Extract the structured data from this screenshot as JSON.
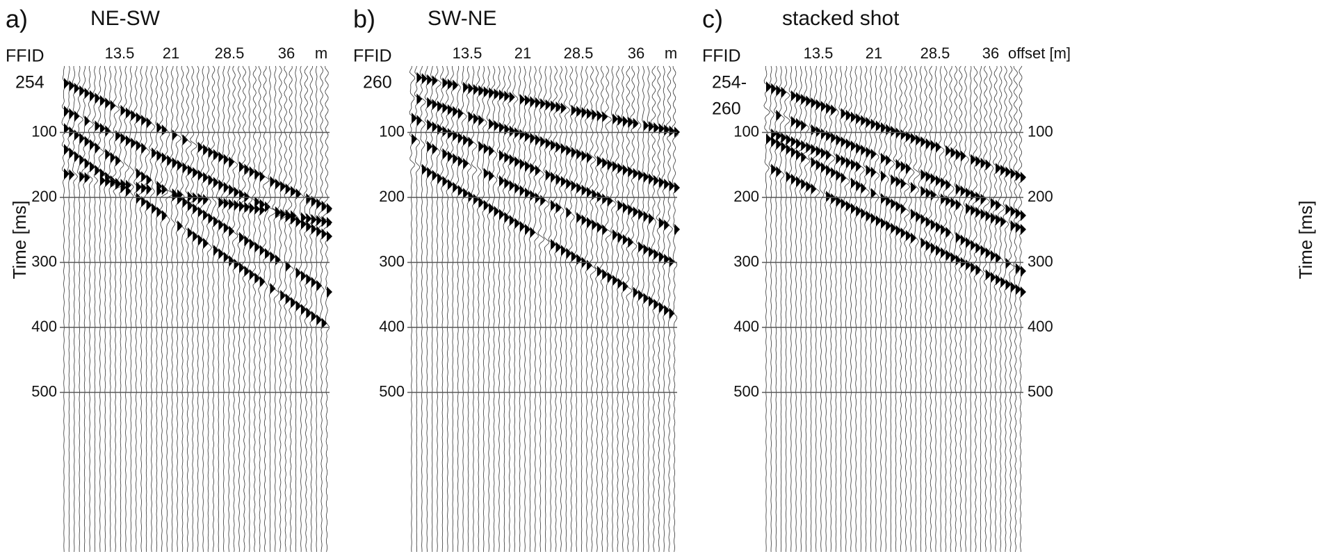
{
  "panels": [
    {
      "letter": "a)",
      "title": "NE-SW",
      "ffid": [
        "FFID",
        "254"
      ],
      "xtick_labels": [
        "13.5",
        "21",
        "28.5",
        "36",
        "m"
      ],
      "ytick_labels": [
        "100",
        "200",
        "300",
        "400",
        "500"
      ],
      "ylabel": "Time [ms]"
    },
    {
      "letter": "b)",
      "title": "SW-NE",
      "ffid": [
        "FFID",
        "260"
      ],
      "xtick_labels": [
        "13.5",
        "21",
        "28.5",
        "36",
        "m"
      ],
      "ytick_labels": [
        "100",
        "200",
        "300",
        "400",
        "500"
      ]
    },
    {
      "letter": "c)",
      "title": "stacked shot",
      "ffid": [
        "FFID",
        "254-",
        "260"
      ],
      "xtick_labels": [
        "13.5",
        "21",
        "28.5",
        "36",
        "offset [m]"
      ],
      "ytick_labels": [
        "100",
        "200",
        "300",
        "400",
        "500"
      ],
      "ylabel": "Time [ms]"
    }
  ]
}
